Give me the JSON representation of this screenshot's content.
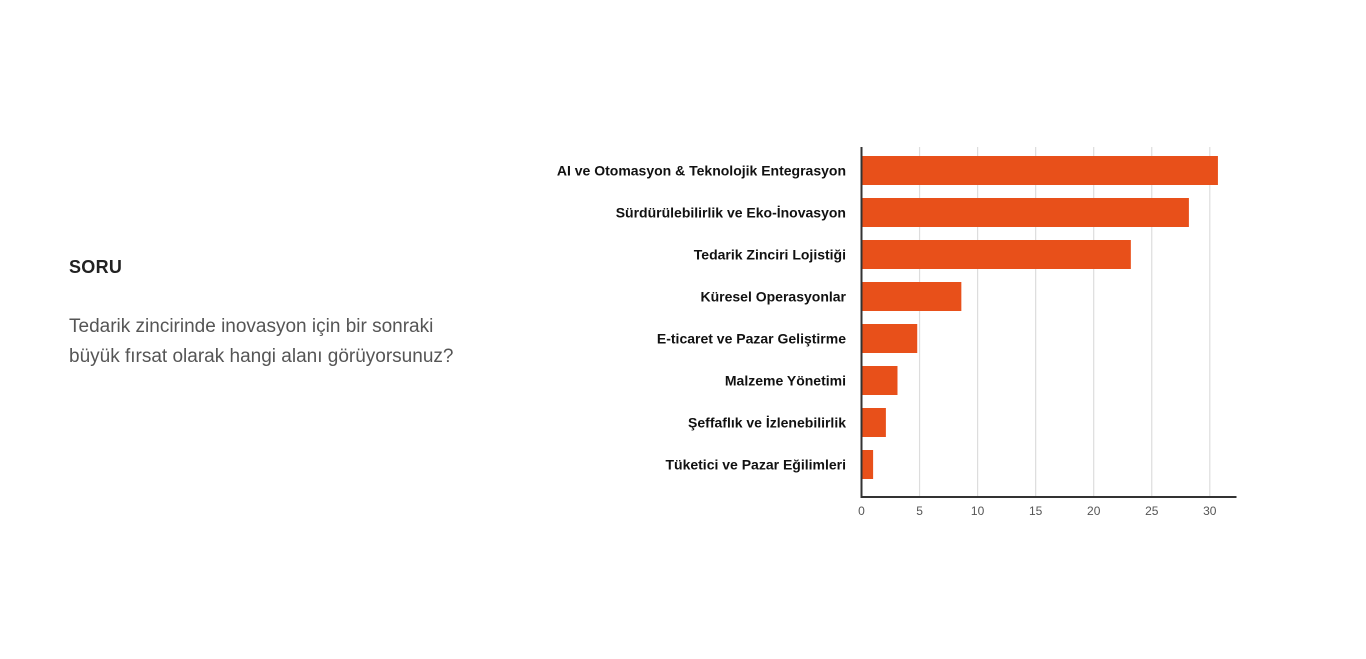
{
  "question": {
    "label": "SORU",
    "text": "Tedarik zincirinde inovasyon için bir sonraki büyük fırsat olarak hangi alanı görüyorsunuz?"
  },
  "colors": {
    "bar": "#E8501A",
    "grid": "#dddddd",
    "axis": "#333333"
  },
  "chart_data": {
    "type": "bar",
    "orientation": "horizontal",
    "title": "",
    "xlabel": "",
    "ylabel": "",
    "categories": [
      "AI ve Otomasyon & Teknolojik Entegrasyon",
      "Sürdürülebilirlik ve Eko-İnovasyon",
      "Tedarik Zinciri Lojistiği",
      "Küresel Operasyonlar",
      "E-ticaret ve Pazar Geliştirme",
      "Malzeme Yönetimi",
      "Şeffaflık ve İzlenebilirlik",
      "Tüketici ve Pazar Eğilimleri"
    ],
    "values": [
      30.7,
      28.2,
      23.2,
      8.6,
      4.8,
      3.1,
      2.1,
      1.0
    ],
    "xlim": [
      0,
      32.3
    ],
    "xticks": [
      "0",
      "5",
      "10",
      "15",
      "20",
      "25",
      "30"
    ],
    "grid": true,
    "legend": "none"
  }
}
